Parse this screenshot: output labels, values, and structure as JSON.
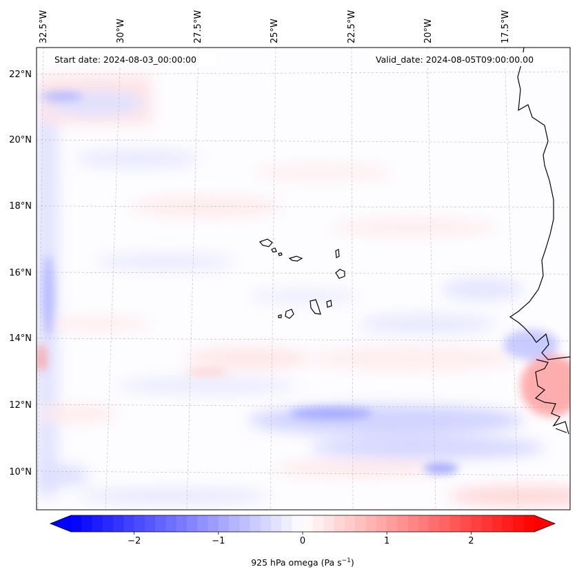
{
  "header": {
    "start_date": "Start date: 2024-08-03_00:00:00",
    "valid_date": "Valid_date: 2024-08-05T09:00:00.00"
  },
  "map": {
    "lon_labels": [
      "32.5°W",
      "30°W",
      "27.5°W",
      "25°W",
      "22.5°W",
      "20°W",
      "17.5°W"
    ],
    "lat_labels": [
      "22°N",
      "20°N",
      "18°N",
      "16°N",
      "14°N",
      "12°N",
      "10°N"
    ],
    "grid": true
  },
  "colorbar": {
    "label_main": "925 hPa omega (Pa s",
    "label_exp": "−1",
    "label_close": ")",
    "ticks": [
      "−2",
      "−1",
      "0",
      "1",
      "2"
    ],
    "range": [
      -2.75,
      2.75
    ],
    "colormap": "bwr",
    "extend": "both",
    "color_min": "#0000ff",
    "color_mid": "#ffffff",
    "color_max": "#ff0000"
  }
}
